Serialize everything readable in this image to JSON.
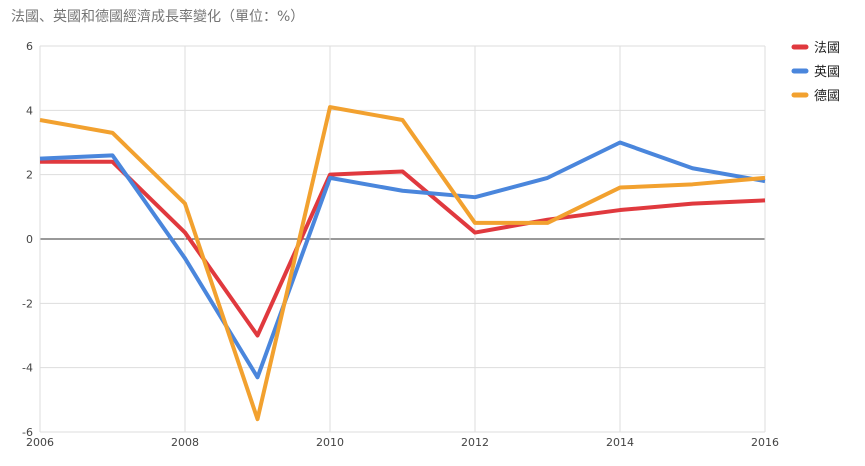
{
  "chart_data": {
    "type": "line",
    "title": "法國、英國和德國經濟成長率變化（單位：%）",
    "x": [
      2006,
      2007,
      2008,
      2009,
      2010,
      2011,
      2012,
      2013,
      2014,
      2015,
      2016
    ],
    "x_ticks": [
      "2006",
      "2008",
      "2010",
      "2012",
      "2014",
      "2016"
    ],
    "y_ticks": [
      "6",
      "4",
      "2",
      "0",
      "-2",
      "-4",
      "-6"
    ],
    "ylim": [
      -6,
      6
    ],
    "xlim": [
      2006,
      2016
    ],
    "grid": true,
    "legend_position": "top-right",
    "series": [
      {
        "name": "法國",
        "color": "#e0393e",
        "values": [
          2.4,
          2.4,
          0.2,
          -3.0,
          2.0,
          2.1,
          0.2,
          0.6,
          0.9,
          1.1,
          1.2
        ]
      },
      {
        "name": "英國",
        "color": "#4a86dc",
        "values": [
          2.5,
          2.6,
          -0.6,
          -4.3,
          1.9,
          1.5,
          1.3,
          1.9,
          3.0,
          2.2,
          1.8
        ]
      },
      {
        "name": "德國",
        "color": "#f2a12f",
        "values": [
          3.7,
          3.3,
          1.1,
          -5.6,
          4.1,
          3.7,
          0.5,
          0.5,
          1.6,
          1.7,
          1.9
        ]
      }
    ]
  }
}
